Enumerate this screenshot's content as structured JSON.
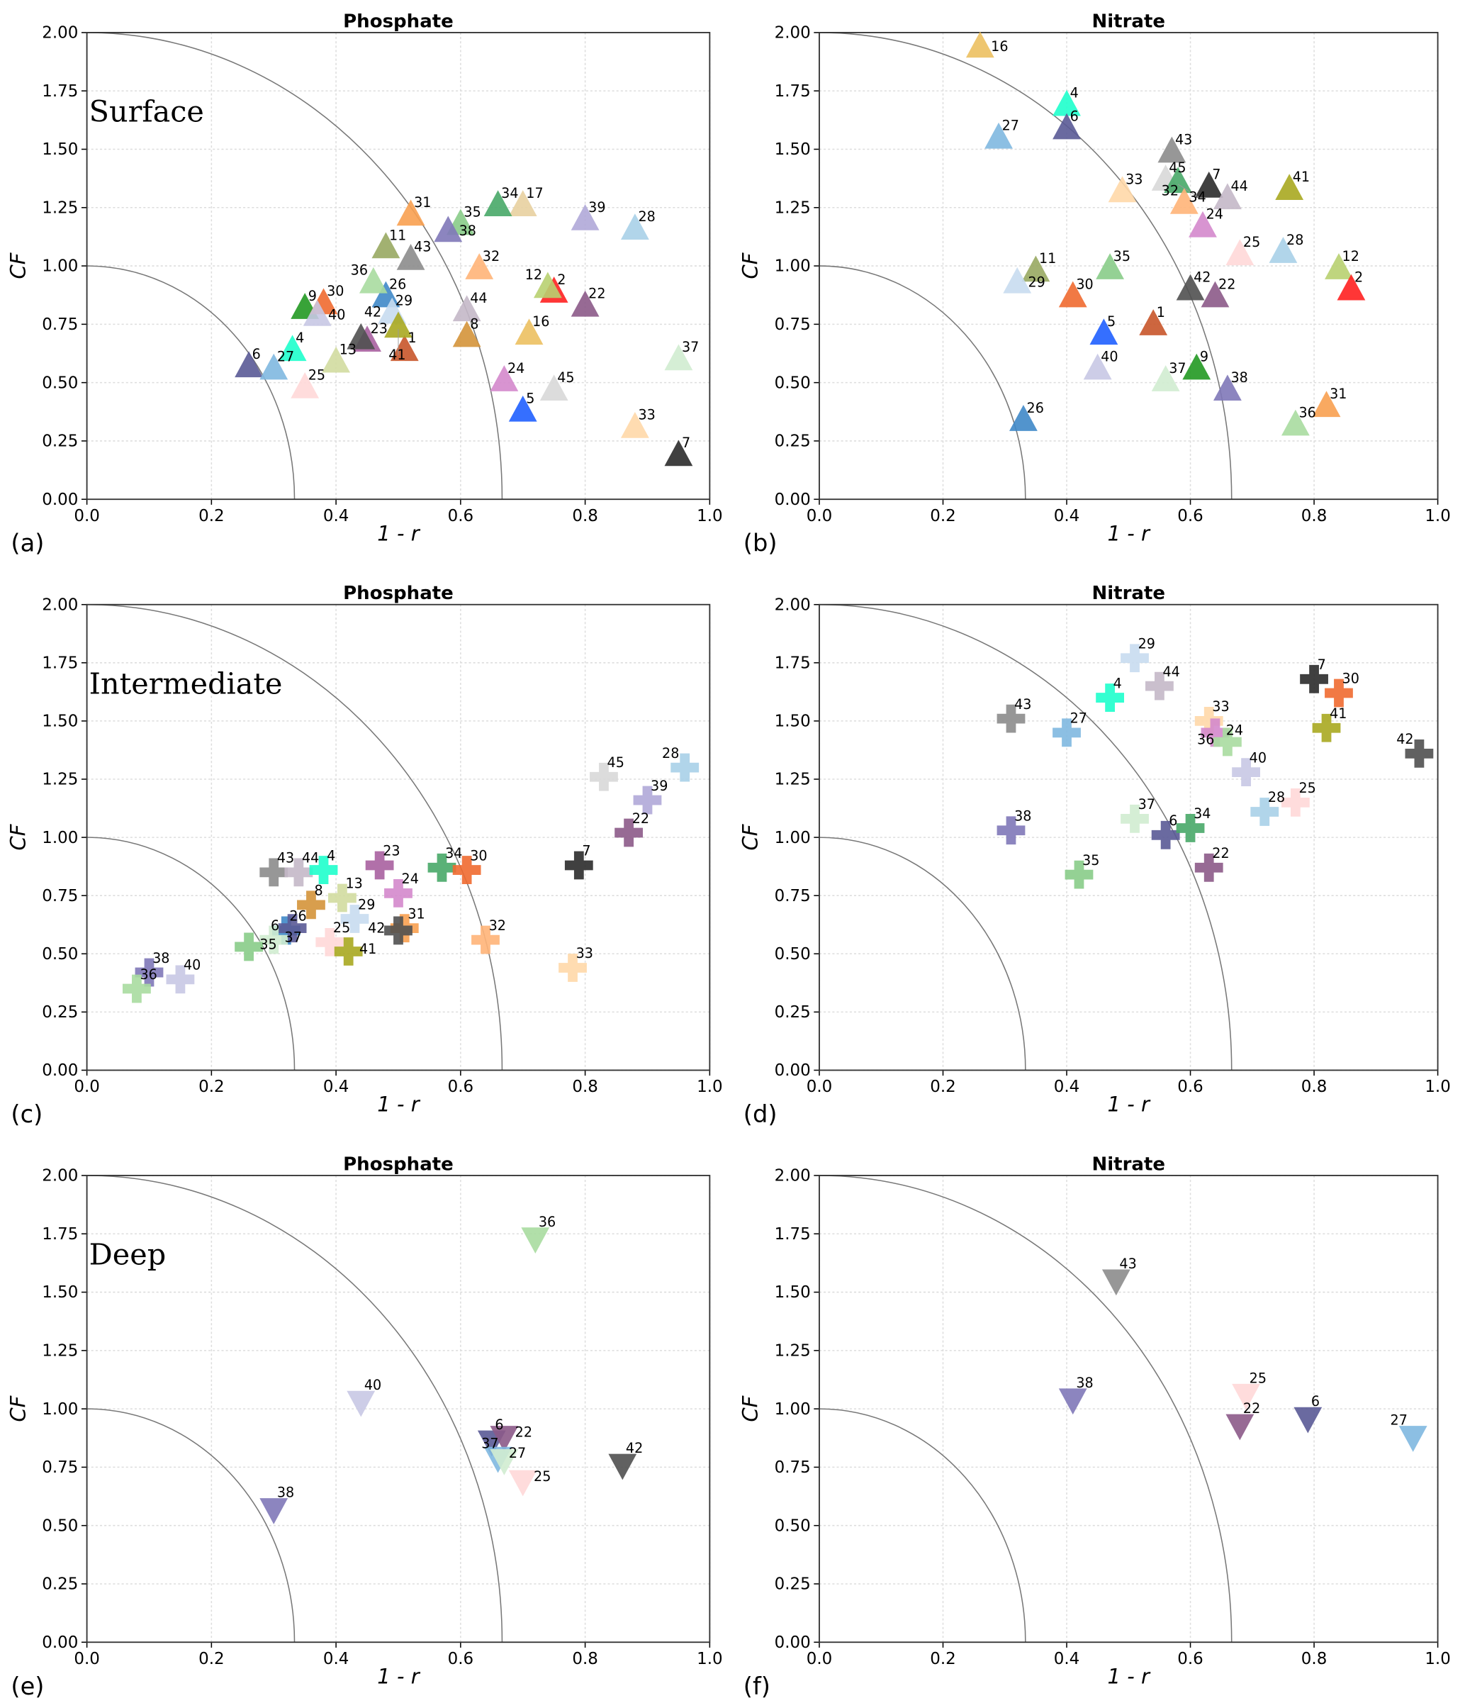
{
  "colors": {
    "1": "#c8552a",
    "2": "#ff2020",
    "4": "#1effcc",
    "5": "#1f5fff",
    "6": "#5a5a96",
    "7": "#2b2b2b",
    "8": "#d4943a",
    "9": "#229922",
    "11": "#98a862",
    "12": "#b8d070",
    "13": "#d2dca0",
    "16": "#ecc060",
    "17": "#e8d0a0",
    "22": "#8c5a88",
    "23": "#a860a0",
    "24": "#d488cc",
    "25": "#ffd8d8",
    "26": "#3f88c8",
    "27": "#80b8e0",
    "28": "#a8d0e8",
    "29": "#c8dcf0",
    "30": "#f06a30",
    "31": "#f8a050",
    "32": "#ffb478",
    "33": "#ffd8a8",
    "34": "#48a868",
    "35": "#88cc88",
    "36": "#a8dca0",
    "37": "#d0ecd0",
    "38": "#8078b8",
    "39": "#b0a8d8",
    "40": "#c8c8e4",
    "41": "#a8a820",
    "42": "#505050",
    "43": "#8c8c8c",
    "44": "#c4b8c8",
    "45": "#d8d8d8"
  },
  "chart_data": [
    {
      "type": "scatter",
      "panel": "(a)",
      "title": "Phosphate",
      "depth_label": "Surface",
      "marker": "triangle-up",
      "xlabel": "1 - r",
      "ylabel": "CF",
      "xlim": [
        0,
        1
      ],
      "ylim": [
        0,
        2
      ],
      "xticks": [
        "0.0",
        "0.2",
        "0.4",
        "0.6",
        "0.8",
        "1.0"
      ],
      "yticks": [
        "0.00",
        "0.25",
        "0.50",
        "0.75",
        "1.00",
        "1.25",
        "1.50",
        "1.75",
        "2.00"
      ],
      "grid": true,
      "points": [
        {
          "id": "1",
          "x": 0.51,
          "y": 0.63
        },
        {
          "id": "2",
          "x": 0.75,
          "y": 0.88
        },
        {
          "id": "4",
          "x": 0.33,
          "y": 0.63
        },
        {
          "id": "5",
          "x": 0.7,
          "y": 0.37
        },
        {
          "id": "6",
          "x": 0.26,
          "y": 0.56
        },
        {
          "id": "7",
          "x": 0.95,
          "y": 0.18
        },
        {
          "id": "8",
          "x": 0.61,
          "y": 0.69
        },
        {
          "id": "9",
          "x": 0.35,
          "y": 0.81
        },
        {
          "id": "11",
          "x": 0.48,
          "y": 1.07
        },
        {
          "id": "12",
          "x": 0.74,
          "y": 0.9
        },
        {
          "id": "13",
          "x": 0.4,
          "y": 0.58
        },
        {
          "id": "16",
          "x": 0.71,
          "y": 0.7
        },
        {
          "id": "17",
          "x": 0.7,
          "y": 1.25
        },
        {
          "id": "22",
          "x": 0.8,
          "y": 0.82
        },
        {
          "id": "23",
          "x": 0.45,
          "y": 0.67
        },
        {
          "id": "24",
          "x": 0.67,
          "y": 0.5
        },
        {
          "id": "25",
          "x": 0.35,
          "y": 0.47
        },
        {
          "id": "26",
          "x": 0.48,
          "y": 0.86
        },
        {
          "id": "27",
          "x": 0.3,
          "y": 0.55
        },
        {
          "id": "28",
          "x": 0.88,
          "y": 1.15
        },
        {
          "id": "29",
          "x": 0.49,
          "y": 0.79
        },
        {
          "id": "30",
          "x": 0.38,
          "y": 0.83
        },
        {
          "id": "31",
          "x": 0.52,
          "y": 1.21
        },
        {
          "id": "32",
          "x": 0.63,
          "y": 0.98
        },
        {
          "id": "33",
          "x": 0.88,
          "y": 0.3
        },
        {
          "id": "34",
          "x": 0.66,
          "y": 1.25
        },
        {
          "id": "35",
          "x": 0.6,
          "y": 1.17
        },
        {
          "id": "36",
          "x": 0.46,
          "y": 0.92
        },
        {
          "id": "37",
          "x": 0.95,
          "y": 0.59
        },
        {
          "id": "38",
          "x": 0.58,
          "y": 1.14
        },
        {
          "id": "39",
          "x": 0.8,
          "y": 1.19
        },
        {
          "id": "40",
          "x": 0.37,
          "y": 0.78
        },
        {
          "id": "41",
          "x": 0.5,
          "y": 0.73
        },
        {
          "id": "42",
          "x": 0.44,
          "y": 0.68
        },
        {
          "id": "43",
          "x": 0.52,
          "y": 1.02
        },
        {
          "id": "44",
          "x": 0.61,
          "y": 0.8
        },
        {
          "id": "45",
          "x": 0.75,
          "y": 0.46
        }
      ]
    },
    {
      "type": "scatter",
      "panel": "(b)",
      "title": "Nitrate",
      "depth_label": "",
      "marker": "triangle-up",
      "xlabel": "1 - r",
      "ylabel": "CF",
      "xlim": [
        0,
        1
      ],
      "ylim": [
        0,
        2
      ],
      "xticks": [
        "0.0",
        "0.2",
        "0.4",
        "0.6",
        "0.8",
        "1.0"
      ],
      "yticks": [
        "0.00",
        "0.25",
        "0.50",
        "0.75",
        "1.00",
        "1.25",
        "1.50",
        "1.75",
        "2.00"
      ],
      "grid": true,
      "points": [
        {
          "id": "16",
          "x": 0.26,
          "y": 1.93
        },
        {
          "id": "4",
          "x": 0.4,
          "y": 1.68
        },
        {
          "id": "6",
          "x": 0.4,
          "y": 1.58
        },
        {
          "id": "27",
          "x": 0.29,
          "y": 1.54
        },
        {
          "id": "43",
          "x": 0.57,
          "y": 1.48
        },
        {
          "id": "45",
          "x": 0.56,
          "y": 1.36
        },
        {
          "id": "34",
          "x": 0.58,
          "y": 1.35
        },
        {
          "id": "7",
          "x": 0.63,
          "y": 1.33
        },
        {
          "id": "33",
          "x": 0.49,
          "y": 1.31
        },
        {
          "id": "44",
          "x": 0.66,
          "y": 1.28
        },
        {
          "id": "41",
          "x": 0.76,
          "y": 1.32
        },
        {
          "id": "32",
          "x": 0.59,
          "y": 1.26
        },
        {
          "id": "24",
          "x": 0.62,
          "y": 1.16
        },
        {
          "id": "25",
          "x": 0.68,
          "y": 1.04
        },
        {
          "id": "28",
          "x": 0.75,
          "y": 1.05
        },
        {
          "id": "12",
          "x": 0.84,
          "y": 0.98
        },
        {
          "id": "2",
          "x": 0.86,
          "y": 0.89
        },
        {
          "id": "11",
          "x": 0.35,
          "y": 0.97
        },
        {
          "id": "29",
          "x": 0.32,
          "y": 0.92
        },
        {
          "id": "35",
          "x": 0.47,
          "y": 0.98
        },
        {
          "id": "30",
          "x": 0.41,
          "y": 0.86
        },
        {
          "id": "42",
          "x": 0.6,
          "y": 0.89
        },
        {
          "id": "22",
          "x": 0.64,
          "y": 0.86
        },
        {
          "id": "1",
          "x": 0.54,
          "y": 0.74
        },
        {
          "id": "5",
          "x": 0.46,
          "y": 0.7
        },
        {
          "id": "40",
          "x": 0.45,
          "y": 0.55
        },
        {
          "id": "37",
          "x": 0.56,
          "y": 0.5
        },
        {
          "id": "9",
          "x": 0.61,
          "y": 0.55
        },
        {
          "id": "38",
          "x": 0.66,
          "y": 0.46
        },
        {
          "id": "26",
          "x": 0.33,
          "y": 0.33
        },
        {
          "id": "31",
          "x": 0.82,
          "y": 0.39
        },
        {
          "id": "36",
          "x": 0.77,
          "y": 0.31
        }
      ]
    },
    {
      "type": "scatter",
      "panel": "(c)",
      "title": "Phosphate",
      "depth_label": "Intermediate",
      "marker": "plus",
      "xlabel": "1 - r",
      "ylabel": "CF",
      "xlim": [
        0,
        1
      ],
      "ylim": [
        0,
        2
      ],
      "xticks": [
        "0.0",
        "0.2",
        "0.4",
        "0.6",
        "0.8",
        "1.0"
      ],
      "yticks": [
        "0.00",
        "0.25",
        "0.50",
        "0.75",
        "1.00",
        "1.25",
        "1.50",
        "1.75",
        "2.00"
      ],
      "grid": true,
      "points": [
        {
          "id": "43",
          "x": 0.3,
          "y": 0.85
        },
        {
          "id": "44",
          "x": 0.34,
          "y": 0.85
        },
        {
          "id": "4",
          "x": 0.38,
          "y": 0.86
        },
        {
          "id": "23",
          "x": 0.47,
          "y": 0.88
        },
        {
          "id": "34",
          "x": 0.57,
          "y": 0.87
        },
        {
          "id": "30",
          "x": 0.61,
          "y": 0.86
        },
        {
          "id": "7",
          "x": 0.79,
          "y": 0.88
        },
        {
          "id": "13",
          "x": 0.41,
          "y": 0.74
        },
        {
          "id": "8",
          "x": 0.36,
          "y": 0.71
        },
        {
          "id": "24",
          "x": 0.5,
          "y": 0.76
        },
        {
          "id": "29",
          "x": 0.43,
          "y": 0.65
        },
        {
          "id": "26",
          "x": 0.32,
          "y": 0.6
        },
        {
          "id": "6",
          "x": 0.33,
          "y": 0.61
        },
        {
          "id": "37",
          "x": 0.3,
          "y": 0.56
        },
        {
          "id": "35",
          "x": 0.26,
          "y": 0.53
        },
        {
          "id": "25",
          "x": 0.39,
          "y": 0.55
        },
        {
          "id": "41",
          "x": 0.42,
          "y": 0.51
        },
        {
          "id": "31",
          "x": 0.51,
          "y": 0.61
        },
        {
          "id": "42",
          "x": 0.5,
          "y": 0.6
        },
        {
          "id": "32",
          "x": 0.64,
          "y": 0.56
        },
        {
          "id": "33",
          "x": 0.78,
          "y": 0.44
        },
        {
          "id": "38",
          "x": 0.1,
          "y": 0.42
        },
        {
          "id": "36",
          "x": 0.08,
          "y": 0.35
        },
        {
          "id": "40",
          "x": 0.15,
          "y": 0.39
        },
        {
          "id": "45",
          "x": 0.83,
          "y": 1.26
        },
        {
          "id": "28",
          "x": 0.96,
          "y": 1.3
        },
        {
          "id": "39",
          "x": 0.9,
          "y": 1.16
        },
        {
          "id": "22",
          "x": 0.87,
          "y": 1.02
        }
      ]
    },
    {
      "type": "scatter",
      "panel": "(d)",
      "title": "Nitrate",
      "depth_label": "",
      "marker": "plus",
      "xlabel": "1 - r",
      "ylabel": "CF",
      "xlim": [
        0,
        1
      ],
      "ylim": [
        0,
        2
      ],
      "xticks": [
        "0.0",
        "0.2",
        "0.4",
        "0.6",
        "0.8",
        "1.0"
      ],
      "yticks": [
        "0.00",
        "0.25",
        "0.50",
        "0.75",
        "1.00",
        "1.25",
        "1.50",
        "1.75",
        "2.00"
      ],
      "grid": true,
      "points": [
        {
          "id": "29",
          "x": 0.51,
          "y": 1.77
        },
        {
          "id": "7",
          "x": 0.8,
          "y": 1.68
        },
        {
          "id": "30",
          "x": 0.84,
          "y": 1.62
        },
        {
          "id": "44",
          "x": 0.55,
          "y": 1.65
        },
        {
          "id": "4",
          "x": 0.47,
          "y": 1.6
        },
        {
          "id": "43",
          "x": 0.31,
          "y": 1.51
        },
        {
          "id": "27",
          "x": 0.4,
          "y": 1.45
        },
        {
          "id": "33",
          "x": 0.63,
          "y": 1.5
        },
        {
          "id": "24",
          "x": 0.64,
          "y": 1.45
        },
        {
          "id": "36",
          "x": 0.66,
          "y": 1.41
        },
        {
          "id": "41",
          "x": 0.82,
          "y": 1.47
        },
        {
          "id": "42",
          "x": 0.97,
          "y": 1.36
        },
        {
          "id": "40",
          "x": 0.69,
          "y": 1.28
        },
        {
          "id": "25",
          "x": 0.77,
          "y": 1.15
        },
        {
          "id": "28",
          "x": 0.72,
          "y": 1.11
        },
        {
          "id": "37",
          "x": 0.51,
          "y": 1.08
        },
        {
          "id": "6",
          "x": 0.56,
          "y": 1.01
        },
        {
          "id": "34",
          "x": 0.6,
          "y": 1.04
        },
        {
          "id": "38",
          "x": 0.31,
          "y": 1.03
        },
        {
          "id": "35",
          "x": 0.42,
          "y": 0.84
        },
        {
          "id": "22",
          "x": 0.63,
          "y": 0.87
        }
      ]
    },
    {
      "type": "scatter",
      "panel": "(e)",
      "title": "Phosphate",
      "depth_label": "Deep",
      "marker": "triangle-down",
      "xlabel": "1 - r",
      "ylabel": "CF",
      "xlim": [
        0,
        1
      ],
      "ylim": [
        0,
        2
      ],
      "xticks": [
        "0.0",
        "0.2",
        "0.4",
        "0.6",
        "0.8",
        "1.0"
      ],
      "yticks": [
        "0.00",
        "0.25",
        "0.50",
        "0.75",
        "1.00",
        "1.25",
        "1.50",
        "1.75",
        "2.00"
      ],
      "grid": true,
      "points": [
        {
          "id": "36",
          "x": 0.72,
          "y": 1.74
        },
        {
          "id": "40",
          "x": 0.44,
          "y": 1.04
        },
        {
          "id": "38",
          "x": 0.3,
          "y": 0.58
        },
        {
          "id": "6",
          "x": 0.65,
          "y": 0.87
        },
        {
          "id": "22",
          "x": 0.67,
          "y": 0.89
        },
        {
          "id": "27",
          "x": 0.66,
          "y": 0.8
        },
        {
          "id": "37",
          "x": 0.67,
          "y": 0.79
        },
        {
          "id": "25",
          "x": 0.7,
          "y": 0.7
        },
        {
          "id": "42",
          "x": 0.86,
          "y": 0.77
        }
      ]
    },
    {
      "type": "scatter",
      "panel": "(f)",
      "title": "Nitrate",
      "depth_label": "",
      "marker": "triangle-down",
      "xlabel": "1 - r",
      "ylabel": "CF",
      "xlim": [
        0,
        1
      ],
      "ylim": [
        0,
        2
      ],
      "xticks": [
        "0.0",
        "0.2",
        "0.4",
        "0.6",
        "0.8",
        "1.0"
      ],
      "yticks": [
        "0.00",
        "0.25",
        "0.50",
        "0.75",
        "1.00",
        "1.25",
        "1.50",
        "1.75",
        "2.00"
      ],
      "grid": true,
      "points": [
        {
          "id": "43",
          "x": 0.48,
          "y": 1.56
        },
        {
          "id": "38",
          "x": 0.41,
          "y": 1.05
        },
        {
          "id": "25",
          "x": 0.69,
          "y": 1.07
        },
        {
          "id": "22",
          "x": 0.68,
          "y": 0.94
        },
        {
          "id": "6",
          "x": 0.79,
          "y": 0.97
        },
        {
          "id": "27",
          "x": 0.96,
          "y": 0.89
        }
      ]
    }
  ]
}
